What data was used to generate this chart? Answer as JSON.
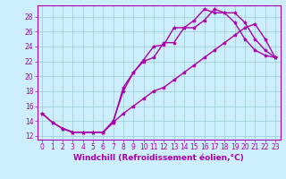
{
  "title": "",
  "xlabel": "Windchill (Refroidissement éolien,°C)",
  "bg_color": "#cceeff",
  "line_color": "#aa00aa",
  "xlim": [
    -0.5,
    23.5
  ],
  "ylim": [
    11.5,
    29.5
  ],
  "xticks": [
    0,
    1,
    2,
    3,
    4,
    5,
    6,
    7,
    8,
    9,
    10,
    11,
    12,
    13,
    14,
    15,
    16,
    17,
    18,
    19,
    20,
    21,
    22,
    23
  ],
  "yticks": [
    12,
    14,
    16,
    18,
    20,
    22,
    24,
    26,
    28
  ],
  "line1_x": [
    0,
    1,
    2,
    3,
    4,
    5,
    6,
    7,
    8,
    9,
    10,
    11,
    12,
    13,
    14,
    15,
    16,
    17,
    18,
    19,
    20,
    21,
    22,
    23
  ],
  "line1_y": [
    15.0,
    13.8,
    13.0,
    12.5,
    12.5,
    12.5,
    12.5,
    14.0,
    18.0,
    20.5,
    22.2,
    24.0,
    24.2,
    26.5,
    26.5,
    27.5,
    29.0,
    28.5,
    28.5,
    27.2,
    25.0,
    23.5,
    22.8,
    22.5
  ],
  "line2_x": [
    2,
    3,
    4,
    5,
    6,
    7,
    8,
    9,
    10,
    11,
    12,
    13,
    14,
    15,
    16,
    17,
    18,
    19,
    20,
    21,
    22,
    23
  ],
  "line2_y": [
    13.0,
    12.5,
    12.5,
    12.5,
    12.5,
    13.8,
    18.5,
    20.5,
    22.0,
    22.5,
    24.5,
    24.5,
    26.5,
    26.5,
    27.5,
    29.0,
    28.5,
    28.5,
    27.2,
    25.0,
    23.5,
    22.5
  ],
  "line3_x": [
    0,
    1,
    2,
    3,
    4,
    5,
    6,
    7,
    8,
    9,
    10,
    11,
    12,
    13,
    14,
    15,
    16,
    17,
    18,
    19,
    20,
    21,
    22,
    23
  ],
  "line3_y": [
    15.0,
    13.8,
    13.0,
    12.5,
    12.5,
    12.5,
    12.5,
    13.8,
    15.0,
    16.0,
    17.0,
    18.0,
    18.5,
    19.5,
    20.5,
    21.5,
    22.5,
    23.5,
    24.5,
    25.5,
    26.5,
    27.0,
    25.0,
    22.5
  ],
  "grid_color": "#99cccc",
  "marker": "*",
  "markersize": 3,
  "linewidth": 1.0,
  "xlabel_fontsize": 6.5,
  "tick_fontsize": 5.5
}
